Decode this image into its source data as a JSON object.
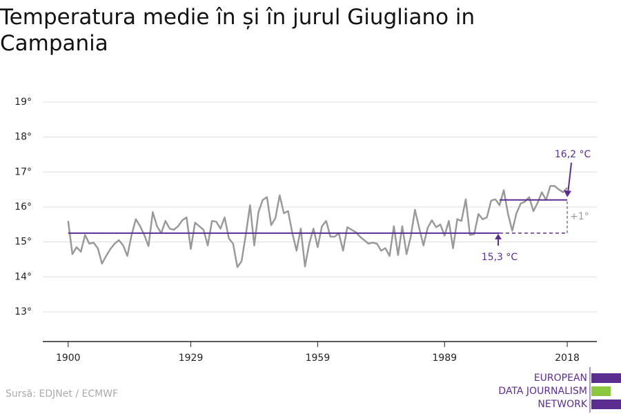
{
  "chart_data": {
    "type": "line",
    "title": "Temperatura medie în și în jurul Giugliano in Campania",
    "source": "Sursă: EDJNet / ECMWF",
    "logo": [
      "EUROPEAN",
      "DATA JOURNALISM",
      "NETWORK"
    ],
    "x": [
      1900,
      1901,
      1902,
      1903,
      1904,
      1905,
      1906,
      1907,
      1908,
      1909,
      1910,
      1911,
      1912,
      1913,
      1914,
      1915,
      1916,
      1917,
      1918,
      1919,
      1920,
      1921,
      1922,
      1923,
      1924,
      1925,
      1926,
      1927,
      1928,
      1929,
      1930,
      1931,
      1932,
      1933,
      1934,
      1935,
      1936,
      1937,
      1938,
      1939,
      1940,
      1941,
      1942,
      1943,
      1944,
      1945,
      1946,
      1947,
      1948,
      1949,
      1950,
      1951,
      1952,
      1953,
      1954,
      1955,
      1956,
      1957,
      1958,
      1959,
      1960,
      1961,
      1962,
      1963,
      1964,
      1965,
      1966,
      1967,
      1968,
      1969,
      1970,
      1971,
      1972,
      1973,
      1974,
      1975,
      1976,
      1977,
      1978,
      1979,
      1980,
      1981,
      1982,
      1983,
      1984,
      1985,
      1986,
      1987,
      1988,
      1989,
      1990,
      1991,
      1992,
      1993,
      1994,
      1995,
      1996,
      1997,
      1998,
      1999,
      2000,
      2001,
      2002,
      2003,
      2004,
      2005,
      2006,
      2007,
      2008,
      2009,
      2010,
      2011,
      2012,
      2013,
      2014,
      2015,
      2016,
      2017,
      2018
    ],
    "series": [
      {
        "color": "#999999",
        "values": [
          15.6,
          14.65,
          14.85,
          14.72,
          15.2,
          14.95,
          14.98,
          14.82,
          14.38,
          14.6,
          14.8,
          14.95,
          15.05,
          14.9,
          14.6,
          15.2,
          15.65,
          15.45,
          15.2,
          14.88,
          15.85,
          15.45,
          15.25,
          15.6,
          15.38,
          15.35,
          15.45,
          15.62,
          15.7,
          14.8,
          15.55,
          15.45,
          15.35,
          14.9,
          15.6,
          15.58,
          15.38,
          15.7,
          15.1,
          14.95,
          14.28,
          14.45,
          15.2,
          16.05,
          14.9,
          15.85,
          16.2,
          16.28,
          15.48,
          15.68,
          16.33,
          15.82,
          15.88,
          15.25,
          14.75,
          15.38,
          14.3,
          14.95,
          15.38,
          14.85,
          15.45,
          15.6,
          15.15,
          15.15,
          15.25,
          14.75,
          15.42,
          15.35,
          15.28,
          15.15,
          15.05,
          14.95,
          14.98,
          14.95,
          14.75,
          14.82,
          14.6,
          15.45,
          14.62,
          15.45,
          14.65,
          15.15,
          15.92,
          15.4,
          14.9,
          15.4,
          15.62,
          15.42,
          15.5,
          15.18,
          15.6,
          14.82,
          15.65,
          15.6,
          16.22,
          15.2,
          15.22,
          15.8,
          15.65,
          15.7,
          16.18,
          16.22,
          16.05,
          16.48,
          15.8,
          15.32,
          15.82,
          16.1,
          16.15,
          16.28,
          15.88,
          16.12,
          16.42,
          16.2,
          16.6,
          16.6,
          16.5,
          16.42,
          16.55
        ]
      }
    ],
    "reference_lines": [
      {
        "value": 15.25,
        "x": [
          1900,
          2002
        ],
        "color": "#5c2d91",
        "label": "15,3 °C"
      },
      {
        "value": 16.2,
        "x": [
          2002,
          2018
        ],
        "color": "#5c2d91",
        "label": "16,2 °C"
      }
    ],
    "difference_label": "+1°",
    "xlim": [
      1894,
      2025
    ],
    "ylim": [
      12.15,
      19.15
    ],
    "xticks": [
      1900,
      1929,
      1959,
      1989,
      2018
    ],
    "yticks": [
      {
        "value": 13,
        "label": "13°"
      },
      {
        "value": 14,
        "label": "14°"
      },
      {
        "value": 15,
        "label": "15°"
      },
      {
        "value": 16,
        "label": "16°"
      },
      {
        "value": 17,
        "label": "17°"
      },
      {
        "value": 18,
        "label": "18°"
      },
      {
        "value": 19,
        "label": "19°"
      }
    ],
    "grid": true
  }
}
